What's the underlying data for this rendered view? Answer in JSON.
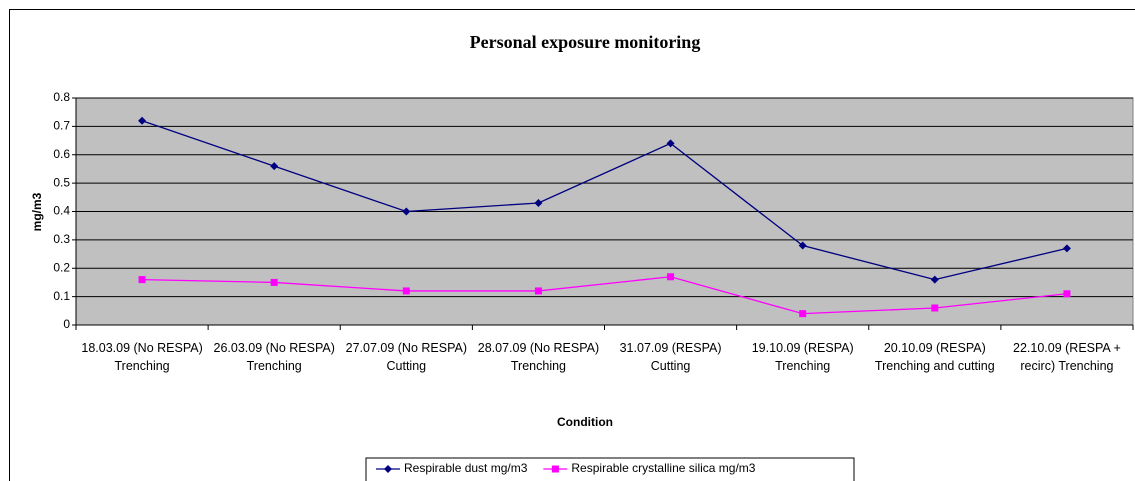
{
  "chart_data": {
    "type": "line",
    "title": "Personal exposure monitoring",
    "x_label": "Condition",
    "y_label": "mg/m3",
    "categories": [
      "18.03.09 (No RESPA) Trenching",
      "26.03.09 (No RESPA) Trenching",
      "27.07.09 (No RESPA) Cutting",
      "28.07.09 (No RESPA) Trenching",
      "31.07.09 (RESPA) Cutting",
      "19.10.09 (RESPA) Trenching",
      "20.10.09 (RESPA) Trenching and cutting",
      "22.10.09 (RESPA + recirc) Trenching"
    ],
    "series": [
      {
        "name": "Respirable dust mg/m3",
        "color": "#000080",
        "marker": "diamond",
        "values": [
          0.72,
          0.56,
          0.4,
          0.43,
          0.64,
          0.28,
          0.16,
          0.27
        ]
      },
      {
        "name": "Respirable crystalline silica mg/m3",
        "color": "#ff00ff",
        "marker": "square",
        "values": [
          0.16,
          0.15,
          0.12,
          0.12,
          0.17,
          0.04,
          0.06,
          0.11
        ]
      }
    ],
    "ylim": [
      0,
      0.8
    ],
    "yticks": [
      0,
      0.1,
      0.2,
      0.3,
      0.4,
      0.5,
      0.6,
      0.7,
      0.8
    ],
    "grid": true,
    "legend": "bottom"
  }
}
